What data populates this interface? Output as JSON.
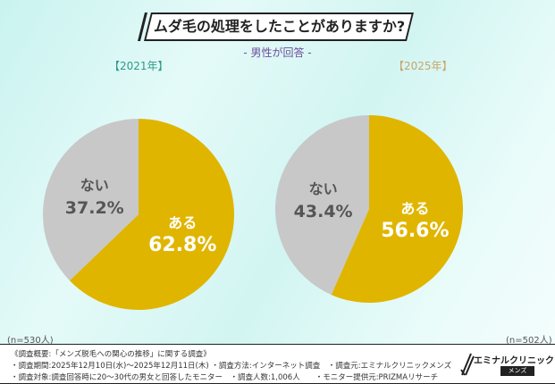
{
  "title": "ムダ毛の処理をしたことがありますか?",
  "subtitle": "- 男性が回答 -",
  "chart_data": [
    {
      "type": "pie",
      "title": "【2021年】",
      "categories": [
        "ある",
        "ない"
      ],
      "values": [
        62.8,
        37.2
      ],
      "labels": [
        "62.8%",
        "37.2%"
      ],
      "colors": [
        "#e0b500",
        "#c8c8c8"
      ],
      "n": "(n=530人)",
      "title_color": "#2e9a8a"
    },
    {
      "type": "pie",
      "title": "【2025年】",
      "categories": [
        "ある",
        "ない"
      ],
      "values": [
        56.6,
        43.4
      ],
      "labels": [
        "56.6%",
        "43.4%"
      ],
      "colors": [
        "#e0b500",
        "#c8c8c8"
      ],
      "n": "(n=502人)",
      "title_color": "#c9a46a"
    }
  ],
  "footer": {
    "lines": [
      "《調査概要:「メンズ脱毛への関心の推移」に関する調査》",
      "・調査期間:2025年12月10日(水)〜2025年12月11日(木) ・調査方法:インターネット調査　・調査元:エミナルクリニックメンズ",
      "・調査対象:調査回答時に20〜30代の男女と回答したモニター　・調査人数:1,006人　　・モニター提供元:PRIZMAリサーチ"
    ],
    "logo": "エミナルクリニック",
    "logo_sub": "メンズ"
  }
}
